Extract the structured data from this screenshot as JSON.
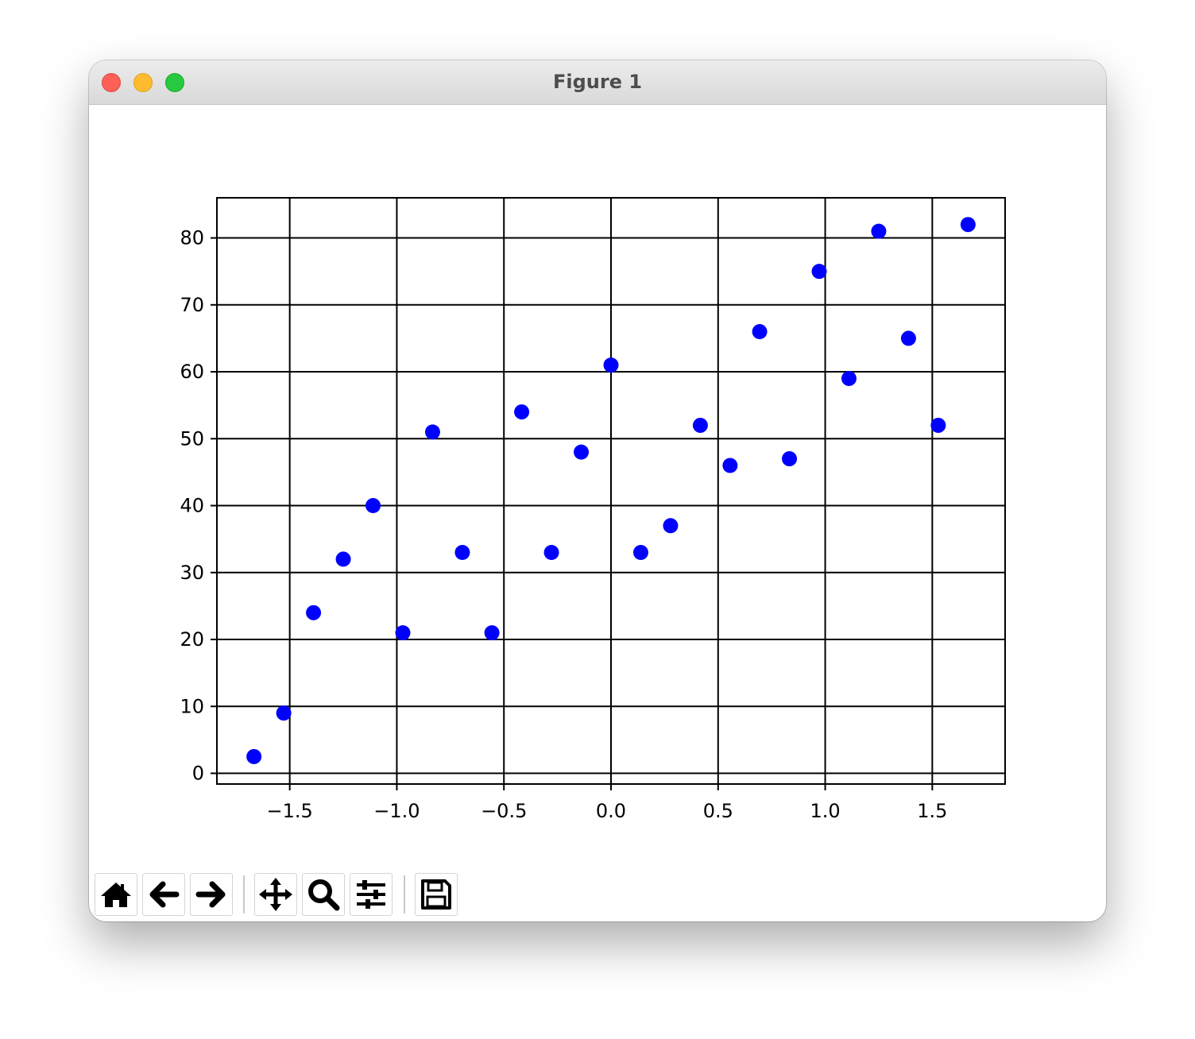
{
  "window": {
    "title": "Figure 1"
  },
  "toolbar": {
    "buttons": [
      {
        "name": "home-button",
        "icon": "home-icon"
      },
      {
        "name": "back-button",
        "icon": "arrow-left-icon"
      },
      {
        "name": "forward-button",
        "icon": "arrow-right-icon"
      },
      {
        "name": "pan-button",
        "icon": "move-icon"
      },
      {
        "name": "zoom-button",
        "icon": "magnifier-icon"
      },
      {
        "name": "configure-subplots-button",
        "icon": "sliders-icon"
      },
      {
        "name": "save-button",
        "icon": "floppy-disk-icon"
      }
    ]
  },
  "chart_data": {
    "type": "scatter",
    "title": "",
    "xlabel": "",
    "ylabel": "",
    "xlim": [
      -1.84,
      1.84
    ],
    "ylim": [
      -1.6,
      86
    ],
    "xticks": [
      -1.5,
      -1.0,
      -0.5,
      0.0,
      0.5,
      1.0,
      1.5
    ],
    "xtick_labels": [
      "−1.5",
      "−1.0",
      "−0.5",
      "0.0",
      "0.5",
      "1.0",
      "1.5"
    ],
    "yticks": [
      0,
      10,
      20,
      30,
      40,
      50,
      60,
      70,
      80
    ],
    "ytick_labels": [
      "0",
      "10",
      "20",
      "30",
      "40",
      "50",
      "60",
      "70",
      "80"
    ],
    "grid": true,
    "marker_color": "#0000ff",
    "series": [
      {
        "x": [
          -1.667,
          -1.528,
          -1.389,
          -1.25,
          -1.111,
          -0.972,
          -0.833,
          -0.694,
          -0.556,
          -0.417,
          -0.278,
          -0.139,
          0.0,
          0.139,
          0.278,
          0.417,
          0.556,
          0.694,
          0.833,
          0.972,
          1.111,
          1.25,
          1.389,
          1.528,
          1.667
        ],
        "y": [
          2.5,
          9,
          24,
          32,
          40,
          21,
          51,
          33,
          21,
          54,
          33,
          48,
          61,
          33,
          37,
          52,
          46,
          66,
          47,
          75,
          59,
          81,
          65,
          52,
          82
        ]
      }
    ]
  }
}
